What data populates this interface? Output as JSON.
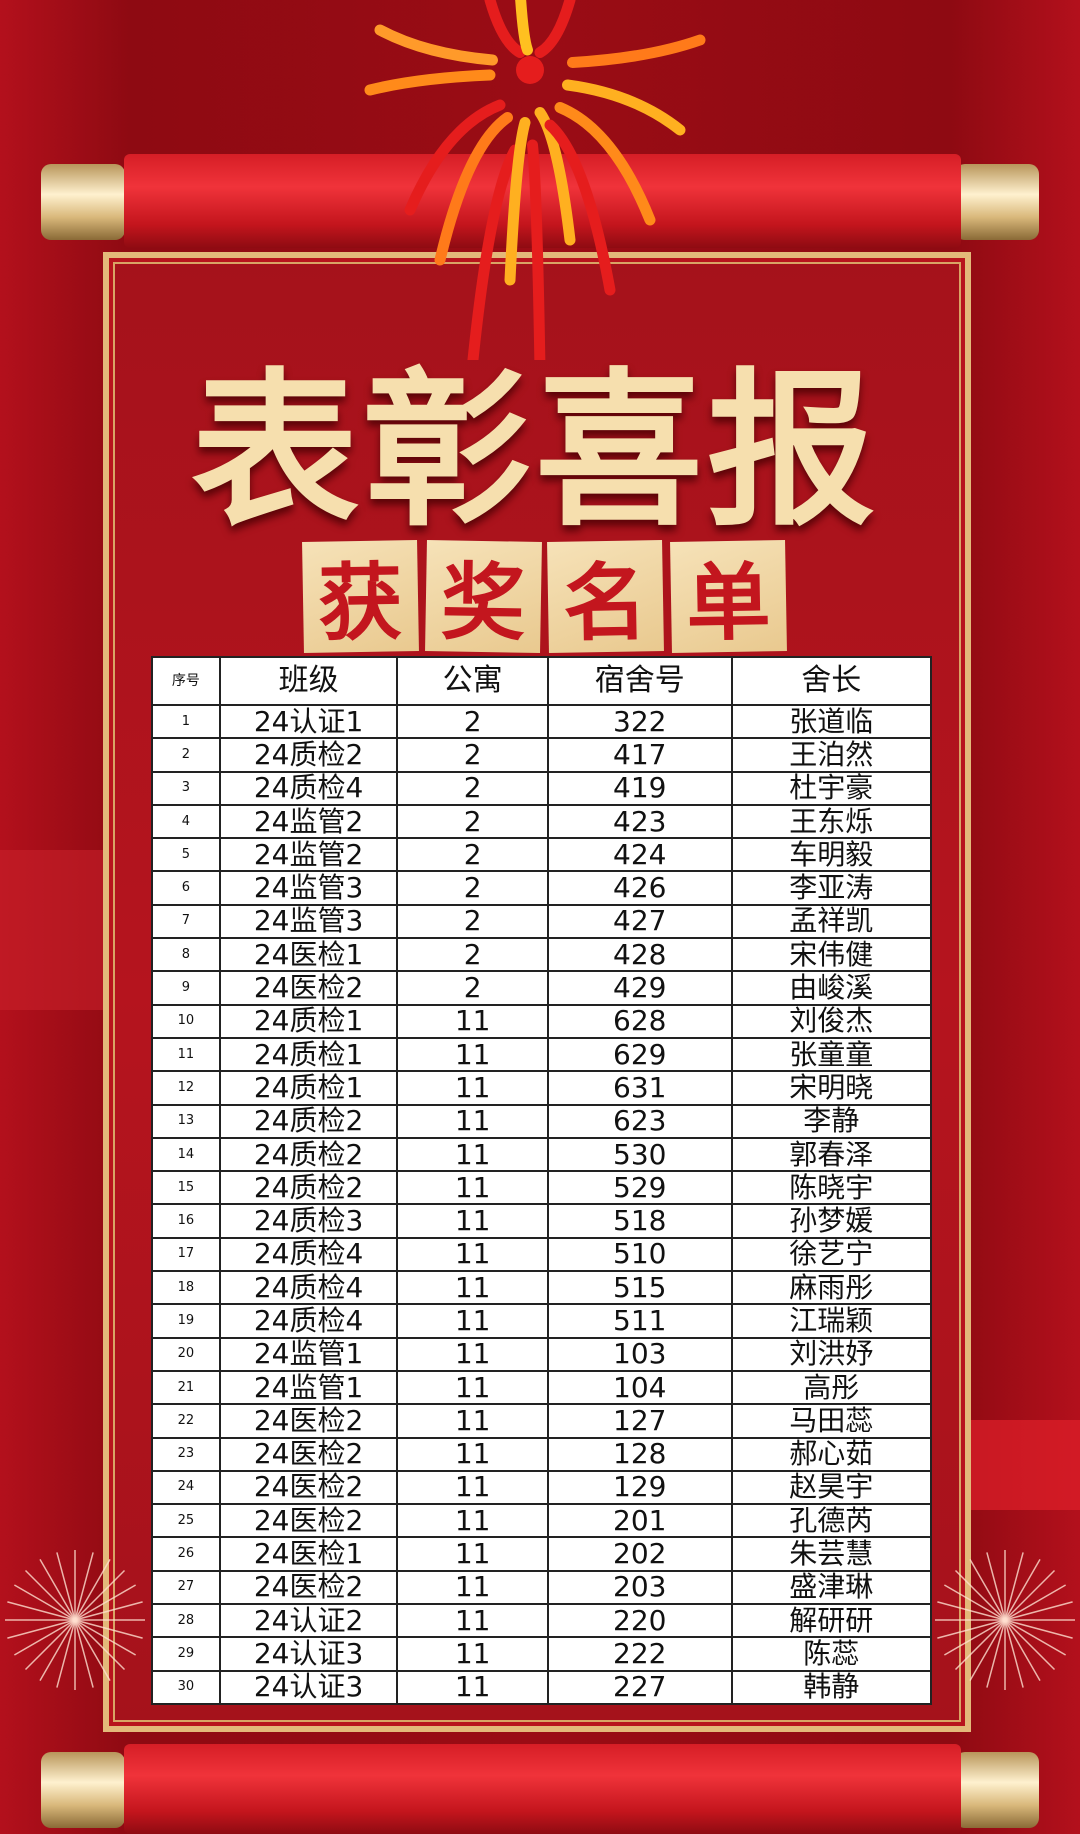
{
  "title": "表彰喜报",
  "subtitle": [
    "获",
    "奖",
    "名",
    "单"
  ],
  "colors": {
    "background": "#9a0c15",
    "gold": "#e3b97a",
    "title": "#f6dfae",
    "tile": "#f0d6a2",
    "tile_text": "#c3161e"
  },
  "table": {
    "headers": [
      "序号",
      "班级",
      "公寓",
      "宿舍号",
      "舍长"
    ],
    "rows": [
      [
        "1",
        "24认证1",
        "2",
        "322",
        "张道临"
      ],
      [
        "2",
        "24质检2",
        "2",
        "417",
        "王泊然"
      ],
      [
        "3",
        "24质检4",
        "2",
        "419",
        "杜宇豪"
      ],
      [
        "4",
        "24监管2",
        "2",
        "423",
        "王东烁"
      ],
      [
        "5",
        "24监管2",
        "2",
        "424",
        "车明毅"
      ],
      [
        "6",
        "24监管3",
        "2",
        "426",
        "李亚涛"
      ],
      [
        "7",
        "24监管3",
        "2",
        "427",
        "孟祥凯"
      ],
      [
        "8",
        "24医检1",
        "2",
        "428",
        "宋伟健"
      ],
      [
        "9",
        "24医检2",
        "2",
        "429",
        "由峻溪"
      ],
      [
        "10",
        "24质检1",
        "11",
        "628",
        "刘俊杰"
      ],
      [
        "11",
        "24质检1",
        "11",
        "629",
        "张童童"
      ],
      [
        "12",
        "24质检1",
        "11",
        "631",
        "宋明晓"
      ],
      [
        "13",
        "24质检2",
        "11",
        "623",
        "李静"
      ],
      [
        "14",
        "24质检2",
        "11",
        "530",
        "郭春泽"
      ],
      [
        "15",
        "24质检2",
        "11",
        "529",
        "陈晓宇"
      ],
      [
        "16",
        "24质检3",
        "11",
        "518",
        "孙梦媛"
      ],
      [
        "17",
        "24质检4",
        "11",
        "510",
        "徐艺宁"
      ],
      [
        "18",
        "24质检4",
        "11",
        "515",
        "麻雨彤"
      ],
      [
        "19",
        "24质检4",
        "11",
        "511",
        "江瑞颖"
      ],
      [
        "20",
        "24监管1",
        "11",
        "103",
        "刘洪妤"
      ],
      [
        "21",
        "24监管1",
        "11",
        "104",
        "高彤"
      ],
      [
        "22",
        "24医检2",
        "11",
        "127",
        "马田蕊"
      ],
      [
        "23",
        "24医检2",
        "11",
        "128",
        "郝心茹"
      ],
      [
        "24",
        "24医检2",
        "11",
        "129",
        "赵昊宇"
      ],
      [
        "25",
        "24医检2",
        "11",
        "201",
        "孔德芮"
      ],
      [
        "26",
        "24医检1",
        "11",
        "202",
        "朱芸慧"
      ],
      [
        "27",
        "24医检2",
        "11",
        "203",
        "盛津琳"
      ],
      [
        "28",
        "24认证2",
        "11",
        "220",
        "解研研"
      ],
      [
        "29",
        "24认证3",
        "11",
        "222",
        "陈蕊"
      ],
      [
        "30",
        "24认证3",
        "11",
        "227",
        "韩静"
      ]
    ]
  }
}
